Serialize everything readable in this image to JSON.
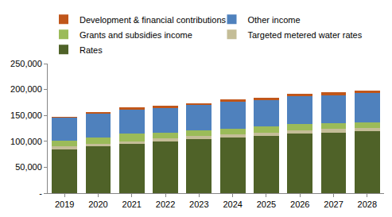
{
  "chart_data": {
    "type": "bar",
    "stacked": true,
    "categories": [
      "2019",
      "2020",
      "2021",
      "2022",
      "2023",
      "2024",
      "2025",
      "2026",
      "2027",
      "2028"
    ],
    "series": [
      {
        "name": "Rates",
        "color": "#4f6228",
        "values": [
          85000,
          90000,
          95000,
          100000,
          104000,
          107000,
          111000,
          115000,
          117000,
          119000
        ]
      },
      {
        "name": "Targeted metered water rates",
        "color": "#c4bd97",
        "values": [
          5000,
          5200,
          5400,
          5600,
          5800,
          6000,
          6200,
          6400,
          6600,
          6800
        ]
      },
      {
        "name": "Grants and subsidies income",
        "color": "#9bbb59",
        "values": [
          12000,
          12000,
          14000,
          11000,
          11000,
          12000,
          11000,
          12000,
          11000,
          11000
        ]
      },
      {
        "name": "Other income",
        "color": "#4f81bd",
        "values": [
          43000,
          46000,
          46000,
          47000,
          49000,
          51000,
          51000,
          53000,
          54000,
          56000
        ]
      },
      {
        "name": "Development & financial contributions",
        "color": "#c0561a",
        "values": [
          3000,
          3000,
          5000,
          5000,
          4000,
          5000,
          5000,
          5000,
          6000,
          5000
        ]
      }
    ],
    "ylim": [
      0,
      250000
    ],
    "yticks": [
      {
        "value": 0,
        "label": "-"
      },
      {
        "value": 50000,
        "label": "50,000"
      },
      {
        "value": 100000,
        "label": "100,000"
      },
      {
        "value": 150000,
        "label": "150,000"
      },
      {
        "value": 200000,
        "label": "200,000"
      },
      {
        "value": 250000,
        "label": "250,000"
      }
    ],
    "grid": false,
    "legend": "top"
  }
}
